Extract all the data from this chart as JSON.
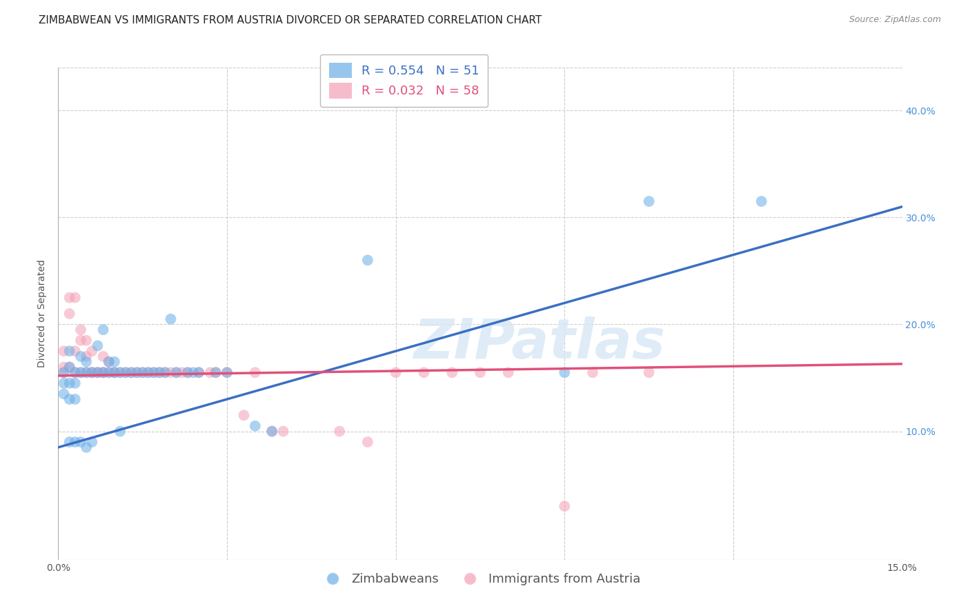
{
  "title": "ZIMBABWEAN VS IMMIGRANTS FROM AUSTRIA DIVORCED OR SEPARATED CORRELATION CHART",
  "source": "Source: ZipAtlas.com",
  "ylabel": "Divorced or Separated",
  "xlabel": "",
  "xlim": [
    0.0,
    0.15
  ],
  "ylim": [
    -0.02,
    0.44
  ],
  "xticks": [
    0.0,
    0.03,
    0.06,
    0.09,
    0.12,
    0.15
  ],
  "xtick_labels": [
    "0.0%",
    "",
    "",
    "",
    "",
    "15.0%"
  ],
  "yticks": [
    0.1,
    0.2,
    0.3,
    0.4
  ],
  "ytick_labels": [
    "10.0%",
    "20.0%",
    "30.0%",
    "40.0%"
  ],
  "legend_R_blue": "R = 0.554",
  "legend_N_blue": "N = 51",
  "legend_R_pink": "R = 0.032",
  "legend_N_pink": "N = 58",
  "blue_color": "#6aaee6",
  "pink_color": "#f4a0b5",
  "blue_line_color": "#3a6fc4",
  "pink_line_color": "#e0507a",
  "watermark": "ZIPatlas",
  "label_blue": "Zimbabweans",
  "label_pink": "Immigrants from Austria",
  "blue_scatter_x": [
    0.001,
    0.001,
    0.001,
    0.002,
    0.002,
    0.002,
    0.002,
    0.002,
    0.003,
    0.003,
    0.003,
    0.003,
    0.004,
    0.004,
    0.004,
    0.005,
    0.005,
    0.005,
    0.006,
    0.006,
    0.007,
    0.007,
    0.008,
    0.008,
    0.009,
    0.009,
    0.01,
    0.01,
    0.011,
    0.011,
    0.012,
    0.013,
    0.014,
    0.015,
    0.016,
    0.017,
    0.018,
    0.019,
    0.02,
    0.021,
    0.023,
    0.024,
    0.025,
    0.028,
    0.03,
    0.035,
    0.038,
    0.055,
    0.09,
    0.105,
    0.125
  ],
  "blue_scatter_y": [
    0.155,
    0.145,
    0.135,
    0.175,
    0.16,
    0.145,
    0.13,
    0.09,
    0.155,
    0.145,
    0.13,
    0.09,
    0.17,
    0.155,
    0.09,
    0.165,
    0.155,
    0.085,
    0.155,
    0.09,
    0.18,
    0.155,
    0.195,
    0.155,
    0.165,
    0.155,
    0.165,
    0.155,
    0.155,
    0.1,
    0.155,
    0.155,
    0.155,
    0.155,
    0.155,
    0.155,
    0.155,
    0.155,
    0.205,
    0.155,
    0.155,
    0.155,
    0.155,
    0.155,
    0.155,
    0.105,
    0.1,
    0.26,
    0.155,
    0.315,
    0.315
  ],
  "pink_scatter_x": [
    0.001,
    0.001,
    0.001,
    0.002,
    0.002,
    0.002,
    0.003,
    0.003,
    0.003,
    0.004,
    0.004,
    0.004,
    0.005,
    0.005,
    0.005,
    0.006,
    0.006,
    0.006,
    0.007,
    0.007,
    0.008,
    0.008,
    0.008,
    0.009,
    0.009,
    0.01,
    0.01,
    0.011,
    0.012,
    0.013,
    0.014,
    0.015,
    0.016,
    0.017,
    0.018,
    0.019,
    0.02,
    0.021,
    0.022,
    0.023,
    0.025,
    0.027,
    0.028,
    0.03,
    0.033,
    0.035,
    0.038,
    0.04,
    0.05,
    0.055,
    0.06,
    0.065,
    0.07,
    0.075,
    0.08,
    0.09,
    0.095,
    0.105
  ],
  "pink_scatter_y": [
    0.175,
    0.16,
    0.155,
    0.225,
    0.21,
    0.16,
    0.225,
    0.175,
    0.155,
    0.195,
    0.185,
    0.155,
    0.185,
    0.17,
    0.155,
    0.175,
    0.155,
    0.155,
    0.155,
    0.155,
    0.17,
    0.155,
    0.155,
    0.165,
    0.155,
    0.155,
    0.155,
    0.155,
    0.155,
    0.155,
    0.155,
    0.155,
    0.155,
    0.155,
    0.155,
    0.155,
    0.155,
    0.155,
    0.155,
    0.155,
    0.155,
    0.155,
    0.155,
    0.155,
    0.115,
    0.155,
    0.1,
    0.1,
    0.1,
    0.09,
    0.155,
    0.155,
    0.155,
    0.155,
    0.155,
    0.03,
    0.155,
    0.155
  ],
  "blue_line_x": [
    0.0,
    0.15
  ],
  "blue_line_y": [
    0.085,
    0.31
  ],
  "pink_line_x": [
    0.0,
    0.15
  ],
  "pink_line_y": [
    0.152,
    0.163
  ],
  "title_fontsize": 11,
  "axis_label_fontsize": 10,
  "tick_fontsize": 10,
  "legend_fontsize": 13,
  "source_fontsize": 9,
  "grid_color": "#cccccc",
  "background_color": "#ffffff"
}
